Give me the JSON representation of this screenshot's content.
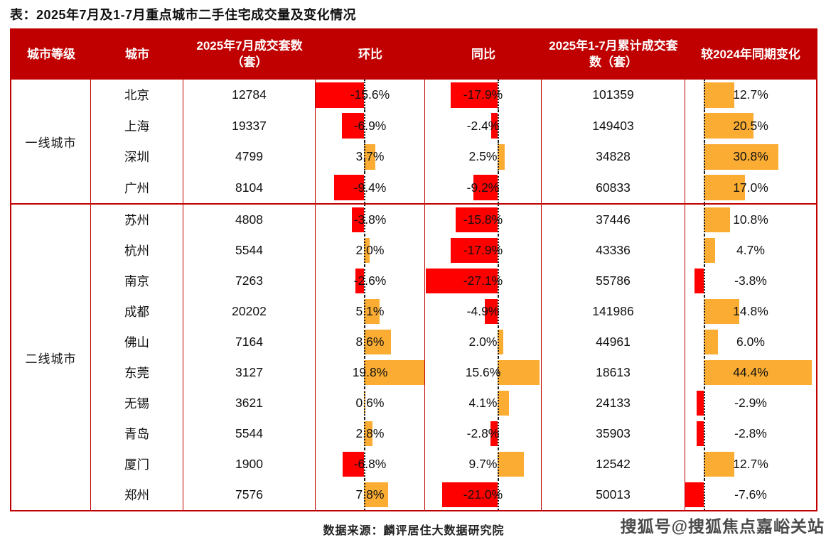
{
  "title": "表：2025年7月及1-7月重点城市二手住宅成交量及变化情况",
  "footer_source": "数据来源：麟评居住大数据研究院",
  "watermark": "搜狐号@搜狐焦点嘉峪关站",
  "colors": {
    "header_bg": "#C00000",
    "table_border": "#C00000",
    "bar_positive": "#FBAD33",
    "bar_negative": "#FE0000",
    "header_text": "#FFFFFF",
    "body_text": "#111111"
  },
  "chart_data": {
    "type": "table",
    "title": "2025年7月及1-7月重点城市二手住宅成交量及变化情况",
    "columns": [
      "城市等级",
      "城市",
      "2025年7月成交套数（套）",
      "环比",
      "同比",
      "2025年1-7月累计成交套数（套）",
      "较2024年同期变化"
    ],
    "percent_bar_columns": [
      "环比",
      "同比",
      "较2024年同期变化"
    ],
    "bar_color_rule": "negative=red, positive=orange, dotted line = zero baseline",
    "tiers": [
      {
        "tier": "一线城市",
        "rows": [
          {
            "city": "北京",
            "jul_units": "12784",
            "mom_pct": -15.6,
            "yoy_pct": -17.9,
            "cum_units": "101359",
            "vs2024_pct": 12.7
          },
          {
            "city": "上海",
            "jul_units": "19337",
            "mom_pct": -6.9,
            "yoy_pct": -2.4,
            "cum_units": "149403",
            "vs2024_pct": 20.5
          },
          {
            "city": "深圳",
            "jul_units": "4799",
            "mom_pct": 3.7,
            "yoy_pct": 2.5,
            "cum_units": "34828",
            "vs2024_pct": 30.8
          },
          {
            "city": "广州",
            "jul_units": "8104",
            "mom_pct": -9.4,
            "yoy_pct": -9.2,
            "cum_units": "60833",
            "vs2024_pct": 17.0
          }
        ]
      },
      {
        "tier": "二线城市",
        "rows": [
          {
            "city": "苏州",
            "jul_units": "4808",
            "mom_pct": -3.8,
            "yoy_pct": -15.8,
            "cum_units": "37446",
            "vs2024_pct": 10.8
          },
          {
            "city": "杭州",
            "jul_units": "5544",
            "mom_pct": 2.0,
            "yoy_pct": -17.9,
            "cum_units": "43336",
            "vs2024_pct": 4.7
          },
          {
            "city": "南京",
            "jul_units": "7263",
            "mom_pct": -2.6,
            "yoy_pct": -27.1,
            "cum_units": "55786",
            "vs2024_pct": -3.8
          },
          {
            "city": "成都",
            "jul_units": "20202",
            "mom_pct": 5.1,
            "yoy_pct": -4.9,
            "cum_units": "141986",
            "vs2024_pct": 14.8
          },
          {
            "city": "佛山",
            "jul_units": "7164",
            "mom_pct": 8.6,
            "yoy_pct": 2.0,
            "cum_units": "44961",
            "vs2024_pct": 6.0
          },
          {
            "city": "东莞",
            "jul_units": "3127",
            "mom_pct": 19.8,
            "yoy_pct": 15.6,
            "cum_units": "18613",
            "vs2024_pct": 44.4
          },
          {
            "city": "无锡",
            "jul_units": "3621",
            "mom_pct": 0.6,
            "yoy_pct": 4.1,
            "cum_units": "24133",
            "vs2024_pct": -2.9
          },
          {
            "city": "青岛",
            "jul_units": "5544",
            "mom_pct": 2.8,
            "yoy_pct": -2.8,
            "cum_units": "35903",
            "vs2024_pct": -2.8
          },
          {
            "city": "厦门",
            "jul_units": "1900",
            "mom_pct": -6.8,
            "yoy_pct": 9.7,
            "cum_units": "12542",
            "vs2024_pct": 12.7
          },
          {
            "city": "郑州",
            "jul_units": "7576",
            "mom_pct": 7.8,
            "yoy_pct": -21.0,
            "cum_units": "50013",
            "vs2024_pct": -7.6
          }
        ]
      }
    ]
  }
}
